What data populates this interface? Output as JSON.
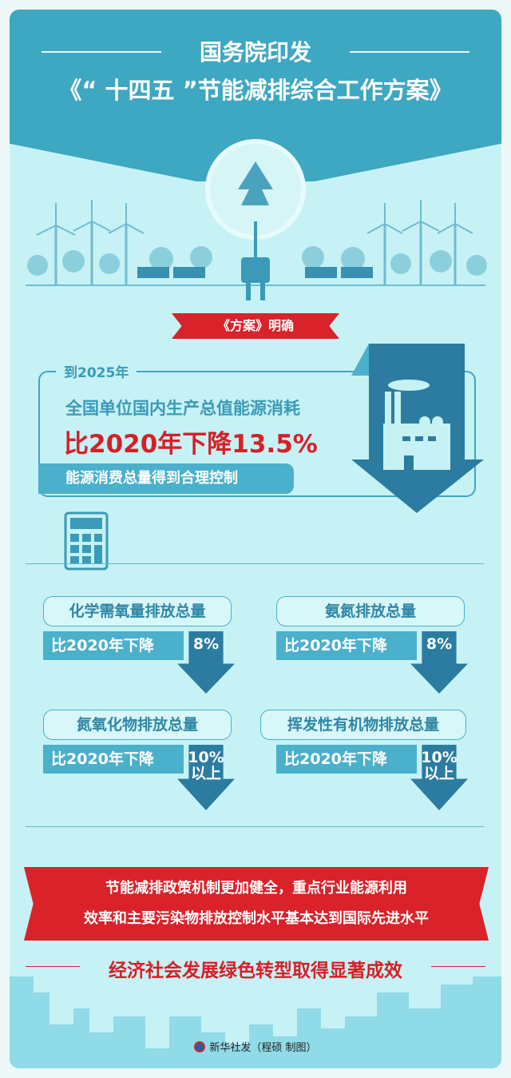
{
  "header": {
    "title_line1": "国务院印发",
    "title_line2": "《“ 十四五 ”节能减排综合工作方案》"
  },
  "ribbon": {
    "label": "《方案》明确"
  },
  "main_target": {
    "year": "到2025年",
    "line1": "全国单位国内生产总值能源消耗",
    "line2": "比2020年下降13.5%",
    "line3": "能源消费总量得到合理控制"
  },
  "items": [
    {
      "title": "化学需氧量排放总量",
      "base": "比2020年下降",
      "value": "8%",
      "suffix": ""
    },
    {
      "title": "氨氮排放总量",
      "base": "比2020年下降",
      "value": "8%",
      "suffix": ""
    },
    {
      "title": "氮氧化物排放总量",
      "base": "比2020年下降",
      "value": "10%",
      "suffix": "以上"
    },
    {
      "title": "挥发性有机物排放总量",
      "base": "比2020年下降",
      "value": "10%",
      "suffix": "以上"
    }
  ],
  "banner": {
    "line1": "节能减排政策机制更加健全，重点行业能源利用",
    "line2": "效率和主要污染物排放控制水平基本达到国际先进水平"
  },
  "slogan": "经济社会发展绿色转型取得显著成效",
  "footer": {
    "credit": "新华社发（程硕 制图）"
  },
  "colors": {
    "background": "#c6f2f5",
    "teal": "#3ea7c1",
    "dark_blue": "#2b7ca0",
    "red": "#d9222a"
  }
}
